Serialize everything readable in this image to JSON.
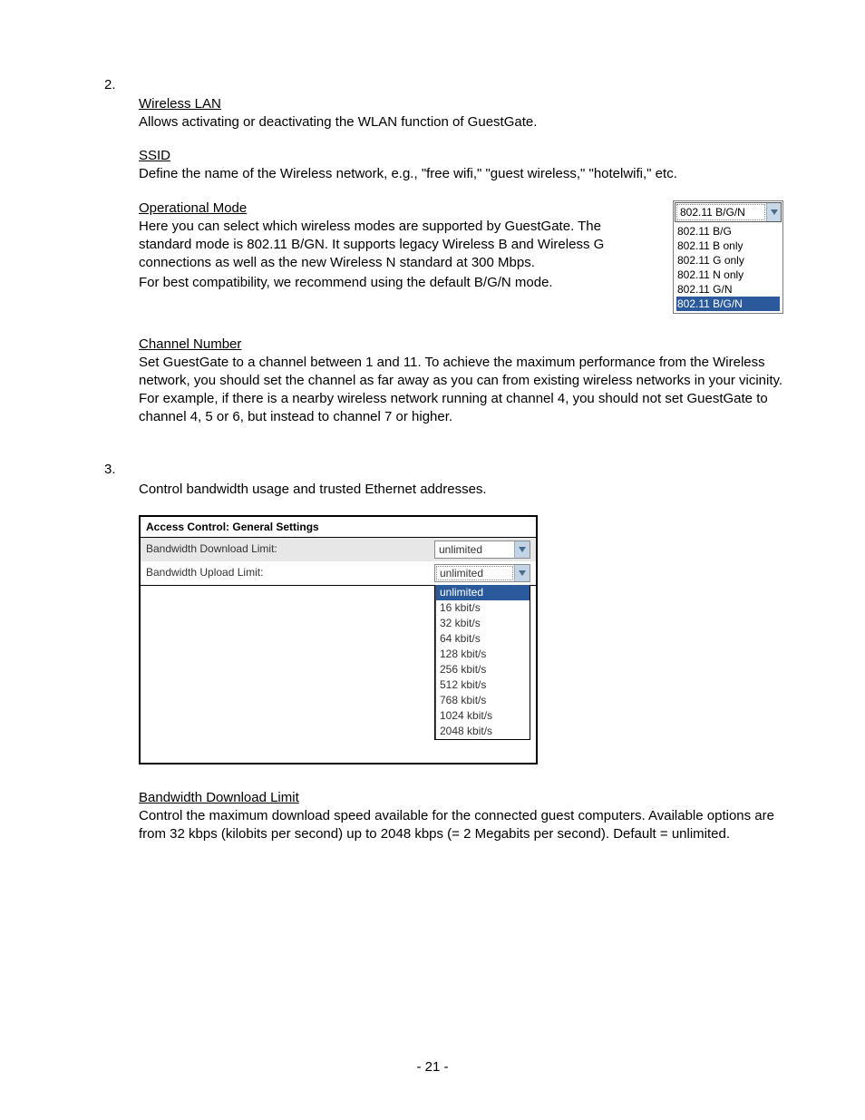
{
  "section2": {
    "number": "2.",
    "wlan": {
      "title": "Wireless LAN",
      "text": "Allows activating or deactivating the WLAN function of GuestGate."
    },
    "ssid": {
      "title": "SSID",
      "text": "Define the name of the Wireless network, e.g., \"free wifi,\" \"guest wireless,\" \"hotelwifi,\" etc."
    },
    "opmode": {
      "title": "Operational Mode",
      "text1": "Here you can select which wireless modes are supported by GuestGate. The standard mode is 802.11 B/GN. It supports legacy Wireless B and Wireless G connections as well as the new Wireless N standard at 300 Mbps.",
      "text2": "For best compatibility, we recommend using the default B/G/N mode.",
      "dropdown": {
        "selected": "802.11 B/G/N",
        "options": [
          "802.11 B/G",
          "802.11 B only",
          "802.11 G only",
          "802.11 N only",
          "802.11 G/N",
          "802.11 B/G/N"
        ],
        "highlighted_index": 5,
        "highlight_bg": "#2a5a9c",
        "highlight_fg": "#ffffff",
        "arrow_bg": "#c7d8e8"
      }
    },
    "channel": {
      "title": "Channel Number",
      "text": "Set GuestGate to a channel between 1 and 11. To achieve the maximum performance from the Wireless network, you should set the channel as far away as you can from existing wireless networks in your vicinity. For example, if there is a nearby wireless network running at channel 4, you should not set GuestGate to channel 4, 5 or 6, but instead to channel 7 or higher."
    }
  },
  "section3": {
    "number": "3.",
    "intro": "Control bandwidth usage and trusted Ethernet addresses.",
    "ac_table": {
      "header": "Access Control: General Settings",
      "rows": [
        {
          "label": "Bandwidth Download Limit:",
          "value": "unlimited",
          "stripe": true,
          "open": false
        },
        {
          "label": "Bandwidth Upload Limit:",
          "value": "unlimited",
          "stripe": false,
          "open": true
        }
      ],
      "options": [
        "unlimited",
        "16 kbit/s",
        "32 kbit/s",
        "64 kbit/s",
        "128 kbit/s",
        "256 kbit/s",
        "512 kbit/s",
        "768 kbit/s",
        "1024 kbit/s",
        "2048 kbit/s"
      ],
      "options_highlight_index": 0,
      "stripe_bg": "#e7e7e7",
      "arrow_bg": "#c2d4e5"
    },
    "bdl": {
      "title": "Bandwidth Download Limit",
      "text": "Control the maximum download speed available for the connected guest computers. Available options are from 32 kbps (kilobits per second) up to 2048 kbps (= 2 Megabits per second). Default = unlimited."
    }
  },
  "page_number": "- 21 -"
}
